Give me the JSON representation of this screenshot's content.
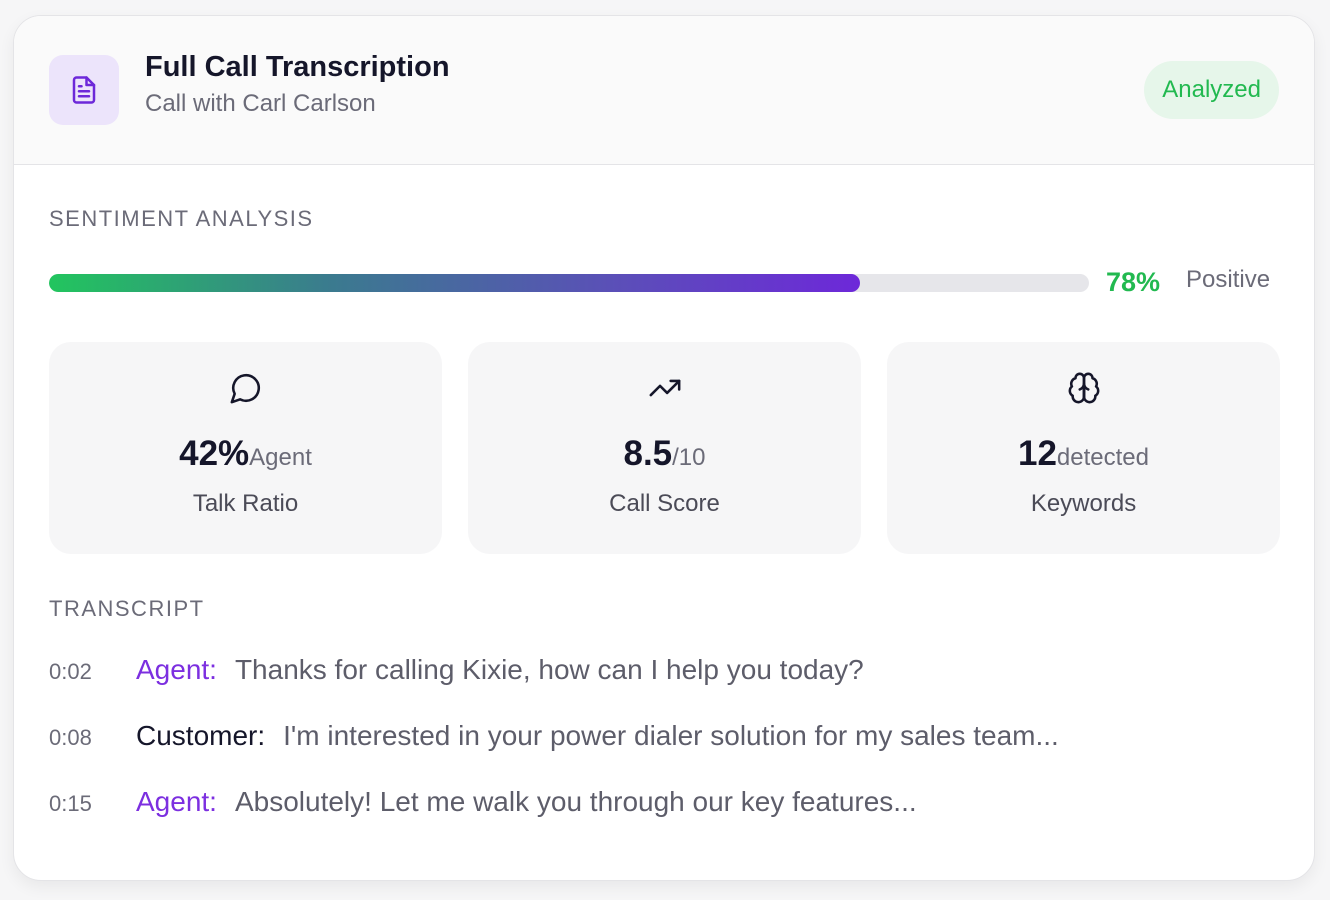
{
  "header": {
    "title": "Full Call Transcription",
    "subtitle": "Call with Carl Carlson",
    "status_badge": "Analyzed",
    "icon": "document-icon"
  },
  "sentiment": {
    "section_label": "SENTIMENT ANALYSIS",
    "percent_text": "78%",
    "percent_value": 78,
    "label": "Positive"
  },
  "stats": [
    {
      "icon": "message-circle-icon",
      "value": "42%",
      "unit": "Agent",
      "caption": "Talk Ratio"
    },
    {
      "icon": "trending-up-icon",
      "value": "8.5",
      "unit": "/10",
      "caption": "Call Score"
    },
    {
      "icon": "brain-icon",
      "value": "12",
      "unit": "detected",
      "caption": "Keywords"
    }
  ],
  "transcript": {
    "section_label": "TRANSCRIPT",
    "lines": [
      {
        "time": "0:02",
        "speaker": "Agent:",
        "role": "agent",
        "text": "Thanks for calling Kixie, how can I help you today?"
      },
      {
        "time": "0:08",
        "speaker": "Customer:",
        "role": "customer",
        "text": "I'm interested in your power dialer solution for my sales team..."
      },
      {
        "time": "0:15",
        "speaker": "Agent:",
        "role": "agent",
        "text": "Absolutely! Let me walk you through our key features..."
      }
    ]
  },
  "colors": {
    "accent_purple": "#7c2fe0",
    "positive_green": "#22b950",
    "badge_bg": "#e6f6ea",
    "icon_bg": "#ece4fb"
  }
}
